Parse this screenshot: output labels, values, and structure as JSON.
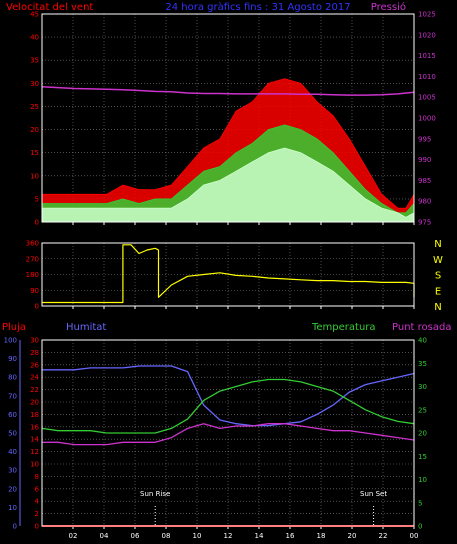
{
  "header": {
    "left": "Velocitat del vent",
    "center": "24 hora gràfics fins : 31 Agosto 2017",
    "right": "Pressió"
  },
  "colors": {
    "wind_gust": "#ff0000",
    "wind_speed": "#33cc33",
    "wind_avg": "#ccffcc",
    "pressure": "#cc33cc",
    "direction": "#ffff00",
    "rain": "#ff0000",
    "humidity": "#6666ff",
    "temperature": "#33cc33",
    "dewpoint": "#cc33cc",
    "sun_markers": "#ffffff",
    "axis_left": "#ff0000",
    "axis_right": "#cc33cc",
    "axis_blue": "#6666ff",
    "axis_green": "#33cc33",
    "frame": "#ffffff",
    "grid": "#808080",
    "dir_letters": "#ffff00"
  },
  "chart_data": [
    {
      "type": "line",
      "name": "wind_pressure",
      "x_range": [
        1,
        24
      ],
      "x_ticks": [
        "02",
        "04",
        "06",
        "08",
        "10",
        "12",
        "14",
        "16",
        "18",
        "20",
        "22",
        "00"
      ],
      "ylim_left": [
        0,
        45
      ],
      "yticks_left": [
        "0",
        "5",
        "10",
        "15",
        "20",
        "25",
        "30",
        "35",
        "40",
        "45"
      ],
      "ylim_right": [
        975,
        1025
      ],
      "yticks_right": [
        "975",
        "980",
        "985",
        "990",
        "995",
        "1000",
        "1005",
        "1010",
        "1015",
        "1020",
        "1025"
      ],
      "ylabel_left": "Velocitat del vent",
      "ylabel_right": "Pressió",
      "series": [
        {
          "key": "gust",
          "color_key": "wind_gust",
          "x": [
            1,
            2,
            3,
            4,
            5,
            6,
            7,
            8,
            9,
            10,
            11,
            12,
            13,
            14,
            15,
            16,
            17,
            18,
            19,
            20,
            21,
            22,
            23,
            23.5,
            24
          ],
          "y": [
            6,
            6,
            6,
            6,
            6,
            8,
            7,
            7,
            8,
            12,
            16,
            18,
            24,
            26,
            30,
            31,
            30,
            26,
            23,
            18,
            12,
            6,
            3,
            3,
            6
          ]
        },
        {
          "key": "speed",
          "color_key": "wind_speed",
          "x": [
            1,
            2,
            3,
            4,
            5,
            6,
            7,
            8,
            9,
            10,
            11,
            12,
            13,
            14,
            15,
            16,
            17,
            18,
            19,
            20,
            21,
            22,
            23,
            23.5,
            24
          ],
          "y": [
            4,
            4,
            4,
            4,
            4,
            5,
            4,
            5,
            5,
            8,
            11,
            12,
            15,
            17,
            20,
            21,
            20,
            18,
            15,
            11,
            7,
            4,
            2,
            2,
            4
          ]
        },
        {
          "key": "avg",
          "color_key": "wind_avg",
          "x": [
            1,
            2,
            3,
            4,
            5,
            6,
            7,
            8,
            9,
            10,
            11,
            12,
            13,
            14,
            15,
            16,
            17,
            18,
            19,
            20,
            21,
            22,
            23,
            23.5,
            24
          ],
          "y": [
            3,
            3,
            3,
            3,
            3,
            3,
            3,
            3,
            3,
            5,
            8,
            9,
            11,
            13,
            15,
            16,
            15,
            13,
            11,
            8,
            5,
            3,
            2,
            1,
            2
          ]
        },
        {
          "key": "pressure",
          "color_key": "pressure",
          "axis": "right",
          "x": [
            1,
            2,
            3,
            4,
            5,
            6,
            7,
            8,
            9,
            10,
            11,
            12,
            13,
            14,
            15,
            16,
            17,
            18,
            19,
            20,
            21,
            22,
            23,
            24
          ],
          "y": [
            1007.5,
            1007.3,
            1007.1,
            1007.0,
            1006.9,
            1006.8,
            1006.6,
            1006.4,
            1006.3,
            1006.0,
            1005.9,
            1005.9,
            1005.8,
            1005.8,
            1005.8,
            1005.8,
            1005.7,
            1005.7,
            1005.6,
            1005.5,
            1005.5,
            1005.6,
            1005.8,
            1006.2
          ]
        }
      ]
    },
    {
      "type": "line",
      "name": "wind_direction",
      "x_range": [
        1,
        24
      ],
      "x_ticks": [
        "02",
        "04",
        "06",
        "08",
        "10",
        "12",
        "14",
        "16",
        "18",
        "20",
        "22",
        "00"
      ],
      "ylim": [
        0,
        360
      ],
      "yticks": [
        "0",
        "90",
        "180",
        "270",
        "360"
      ],
      "dir_letters": [
        "N",
        "W",
        "S",
        "E",
        "N"
      ],
      "series": [
        {
          "key": "direction",
          "color_key": "direction",
          "x": [
            1,
            2,
            3,
            4,
            5,
            6,
            6,
            6.5,
            7,
            7.5,
            8,
            8.2,
            8.2,
            9,
            10,
            11,
            12,
            13,
            14,
            15,
            16,
            17,
            18,
            19,
            20,
            21,
            22,
            23,
            23.5,
            24,
            24
          ],
          "y": [
            20,
            20,
            20,
            20,
            20,
            20,
            350,
            350,
            300,
            320,
            330,
            320,
            50,
            120,
            170,
            180,
            190,
            175,
            170,
            160,
            155,
            150,
            145,
            145,
            140,
            140,
            135,
            135,
            135,
            130,
            50
          ]
        }
      ]
    },
    {
      "type": "line",
      "name": "temp_hum_rain",
      "x_range": [
        1,
        24
      ],
      "x_ticks": [
        "02",
        "04",
        "06",
        "08",
        "10",
        "12",
        "14",
        "16",
        "18",
        "20",
        "22",
        "00"
      ],
      "header": {
        "left": "Pluja",
        "humidity": "Humitat",
        "temperature": "Temperatura",
        "dewpoint": "Punt rosada"
      },
      "ylim_humidity": [
        0,
        100
      ],
      "yticks_humidity": [
        "0",
        "10",
        "20",
        "30",
        "40",
        "50",
        "60",
        "70",
        "80",
        "90",
        "100"
      ],
      "ylim_rain": [
        0,
        30
      ],
      "yticks_rain": [
        "0",
        "2",
        "4",
        "6",
        "8",
        "10",
        "12",
        "14",
        "16",
        "18",
        "20",
        "22",
        "24",
        "26",
        "28",
        "30"
      ],
      "ylim_temp": [
        0,
        40
      ],
      "yticks_temp": [
        "0",
        "5",
        "10",
        "15",
        "20",
        "25",
        "30",
        "35",
        "40"
      ],
      "annotations": [
        {
          "label": "Sun Rise",
          "x": 8.0
        },
        {
          "label": "Sun Set",
          "x": 21.5
        }
      ],
      "series": [
        {
          "key": "rain",
          "color_key": "rain",
          "axis": "rain",
          "x": [
            1,
            24
          ],
          "y": [
            0,
            0
          ]
        },
        {
          "key": "humidity",
          "color_key": "humidity",
          "axis": "humidity",
          "x": [
            1,
            2,
            3,
            4,
            5,
            6,
            7,
            8,
            9,
            10,
            11,
            12,
            13,
            14,
            15,
            16,
            17,
            18,
            19,
            20,
            21,
            22,
            23,
            24
          ],
          "y": [
            84,
            84,
            84,
            85,
            85,
            85,
            86,
            86,
            86,
            83,
            65,
            57,
            55,
            54,
            54,
            55,
            56,
            60,
            65,
            72,
            76,
            78,
            80,
            82
          ]
        },
        {
          "key": "temperature",
          "color_key": "temperature",
          "axis": "temp",
          "x": [
            1,
            2,
            3,
            4,
            5,
            6,
            7,
            8,
            9,
            10,
            11,
            12,
            13,
            14,
            15,
            16,
            17,
            18,
            19,
            20,
            21,
            22,
            23,
            24
          ],
          "y": [
            21,
            20.5,
            20.5,
            20.5,
            20,
            20,
            20,
            20,
            21,
            23,
            27,
            29,
            30,
            31,
            31.5,
            31.5,
            31,
            30,
            29,
            27,
            25,
            23.5,
            22.5,
            22
          ]
        },
        {
          "key": "dewpoint",
          "color_key": "dewpoint",
          "axis": "temp",
          "x": [
            1,
            2,
            3,
            4,
            5,
            6,
            7,
            8,
            9,
            10,
            11,
            12,
            13,
            14,
            15,
            16,
            17,
            18,
            19,
            20,
            21,
            22,
            23,
            24
          ],
          "y": [
            18,
            18,
            17.5,
            17.5,
            17.5,
            18,
            18,
            18,
            19,
            21,
            22,
            21,
            21.5,
            21.5,
            22,
            22,
            21.5,
            21,
            20.5,
            20.5,
            20,
            19.5,
            19,
            18.5
          ]
        }
      ]
    }
  ]
}
